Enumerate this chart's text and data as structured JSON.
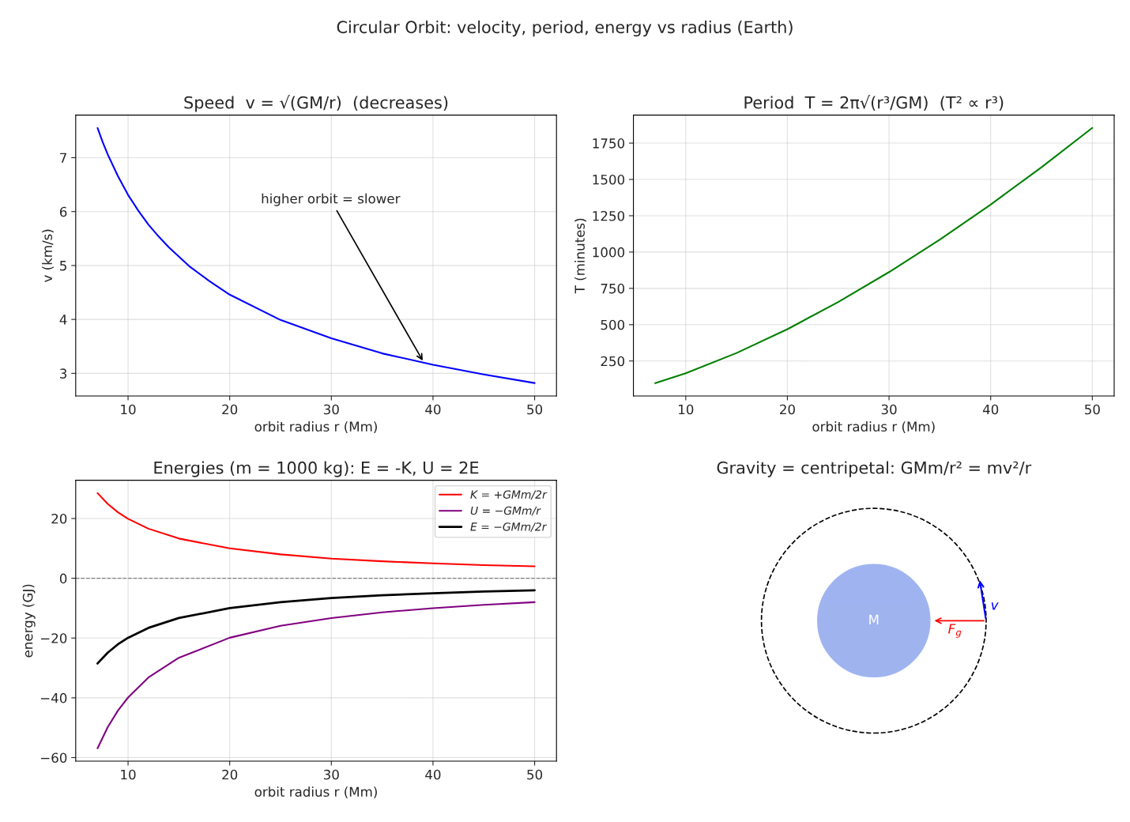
{
  "chart_data": [
    {
      "type": "other",
      "title": "Circular Orbit: velocity, period, energy vs radius (Earth)"
    },
    {
      "type": "line",
      "title": "Speed  v = √(GM/r)  (decreases)",
      "xlabel": "orbit radius r (Mm)",
      "ylabel": "v (km/s)",
      "x": [
        7,
        7.5,
        8,
        9,
        10,
        11,
        12,
        13,
        14,
        16,
        18,
        20,
        25,
        30,
        35,
        40,
        45,
        50
      ],
      "series": [
        {
          "color": "#0000ff",
          "values": [
            7.55,
            7.29,
            7.06,
            6.66,
            6.31,
            6.02,
            5.76,
            5.54,
            5.34,
            4.99,
            4.71,
            4.46,
            3.99,
            3.65,
            3.37,
            3.16,
            2.98,
            2.82
          ]
        }
      ],
      "xlim": [
        4.85,
        52.15
      ],
      "ylim": [
        2.58,
        7.79
      ],
      "xticks": [
        10,
        20,
        30,
        40,
        50
      ],
      "yticks": [
        3,
        4,
        5,
        6,
        7
      ],
      "annotations": [
        {
          "text": "higher orbit = slower",
          "x": 39.1,
          "y": 3.2
        }
      ],
      "grid": true,
      "legend": false,
      "marker": "none",
      "line_style": "solid"
    },
    {
      "type": "line",
      "title": "Period  T = 2π√(r³/GM)  (T² ∝ r³)",
      "xlabel": "orbit radius r (Mm)",
      "ylabel": "T (minutes)",
      "x": [
        7,
        10,
        15,
        20,
        25,
        30,
        35,
        40,
        45,
        50
      ],
      "series": [
        {
          "color": "#008000",
          "values": [
            97,
            166,
            305,
            469,
            656,
            862,
            1086,
            1327,
            1584,
            1855
          ]
        }
      ],
      "xlim": [
        4.85,
        52.15
      ],
      "ylim": [
        9,
        1943
      ],
      "xticks": [
        10,
        20,
        30,
        40,
        50
      ],
      "yticks": [
        250,
        500,
        750,
        1000,
        1250,
        1500,
        1750
      ],
      "grid": true,
      "legend": false,
      "marker": "none",
      "line_style": "solid"
    },
    {
      "type": "line",
      "title": "Energies (m = 1000 kg): E = -K, U = 2E",
      "xlabel": "orbit radius r (Mm)",
      "ylabel": "energy (GJ)",
      "x": [
        7,
        8,
        9,
        10,
        12,
        15,
        20,
        25,
        30,
        35,
        40,
        45,
        50
      ],
      "series": [
        {
          "name": "K = +GMm/2r",
          "color": "#ff0000",
          "values": [
            28.5,
            24.9,
            22.1,
            19.9,
            16.6,
            13.3,
            10.0,
            8.0,
            6.6,
            5.7,
            5.0,
            4.4,
            4.0
          ]
        },
        {
          "name": "U = −GMm/r",
          "color": "#800080",
          "values": [
            -56.9,
            -49.8,
            -44.3,
            -39.9,
            -33.2,
            -26.6,
            -19.9,
            -15.9,
            -13.3,
            -11.4,
            -10.0,
            -8.9,
            -8.0
          ]
        },
        {
          "name": "E = −GMm/2r",
          "color": "#000000",
          "values": [
            -28.5,
            -24.9,
            -22.1,
            -19.9,
            -16.6,
            -13.3,
            -10.0,
            -8.0,
            -6.6,
            -5.7,
            -5.0,
            -4.4,
            -4.0
          ]
        }
      ],
      "xlim": [
        4.85,
        52.15
      ],
      "ylim": [
        -61.2,
        32.8
      ],
      "xticks": [
        10,
        20,
        30,
        40,
        50
      ],
      "yticks": [
        {
          "value": -60,
          "label": "−60"
        },
        {
          "value": -40,
          "label": "−40"
        },
        {
          "value": -20,
          "label": "−20"
        },
        0,
        20
      ],
      "ref_lines": [
        {
          "axis": "y",
          "value": 0,
          "color": "#808080",
          "line_style": "dashed"
        }
      ],
      "grid": true,
      "legend": "top right",
      "marker": "none",
      "line_style": "solid"
    },
    {
      "type": "other",
      "title": "Gravity = centripetal: GMm/r² = mv²/r",
      "annotations": [
        "M",
        "v",
        "F$_{g}$"
      ]
    }
  ]
}
